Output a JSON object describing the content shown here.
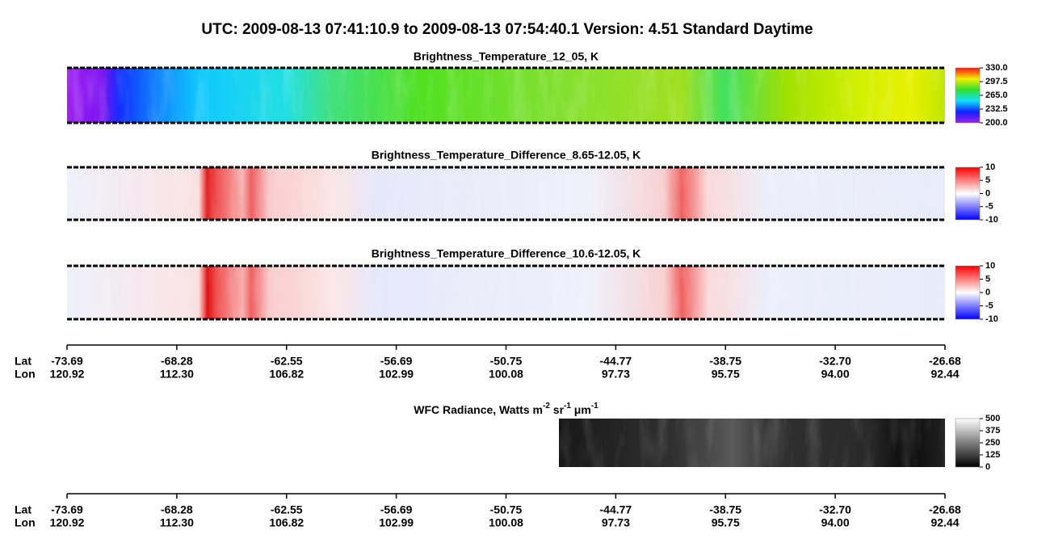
{
  "title": "UTC:  2009-08-13   07:41:10.9  to  2009-08-13   07:54:40.1    Version: 4.51  Standard Daytime",
  "panels": [
    {
      "title": "Brightness_Temperature_12_05, K",
      "colormap": "rainbow",
      "colorbar": {
        "lim": [
          200,
          330
        ],
        "ticks": [
          {
            "value": 330,
            "label": "330.0"
          },
          {
            "value": 297.5,
            "label": "297.5"
          },
          {
            "value": 265,
            "label": "265.0"
          },
          {
            "value": 232.5,
            "label": "232.5"
          },
          {
            "value": 200,
            "label": "200.0"
          }
        ]
      }
    },
    {
      "title": "Brightness_Temperature_Difference_8.65-12.05, K",
      "colormap": "diff",
      "colorbar": {
        "lim": [
          -10,
          10
        ],
        "ticks": [
          10,
          5,
          0,
          -5,
          -10
        ]
      }
    },
    {
      "title": "Brightness_Temperature_Difference_10.6-12.05, K",
      "colormap": "diff",
      "colorbar": {
        "lim": [
          -10,
          10
        ],
        "ticks": [
          10,
          5,
          0,
          -5,
          -10
        ]
      }
    }
  ],
  "wfc": {
    "title": [
      "WFC Radiance, Watts m",
      "-2",
      " sr",
      "-1",
      " μm",
      "-1"
    ],
    "colorbar": {
      "lim": [
        0,
        500
      ],
      "ticks": [
        500,
        375,
        250,
        125,
        0
      ]
    }
  },
  "axis": {
    "lat_label": "Lat",
    "lon_label": "Lon",
    "lat": [
      -73.69,
      -68.28,
      -62.55,
      -56.69,
      -50.75,
      -44.77,
      -38.75,
      -32.7,
      -26.68
    ],
    "lon": [
      120.92,
      112.3,
      106.82,
      102.99,
      100.08,
      97.73,
      95.75,
      94.0,
      92.44
    ]
  }
}
